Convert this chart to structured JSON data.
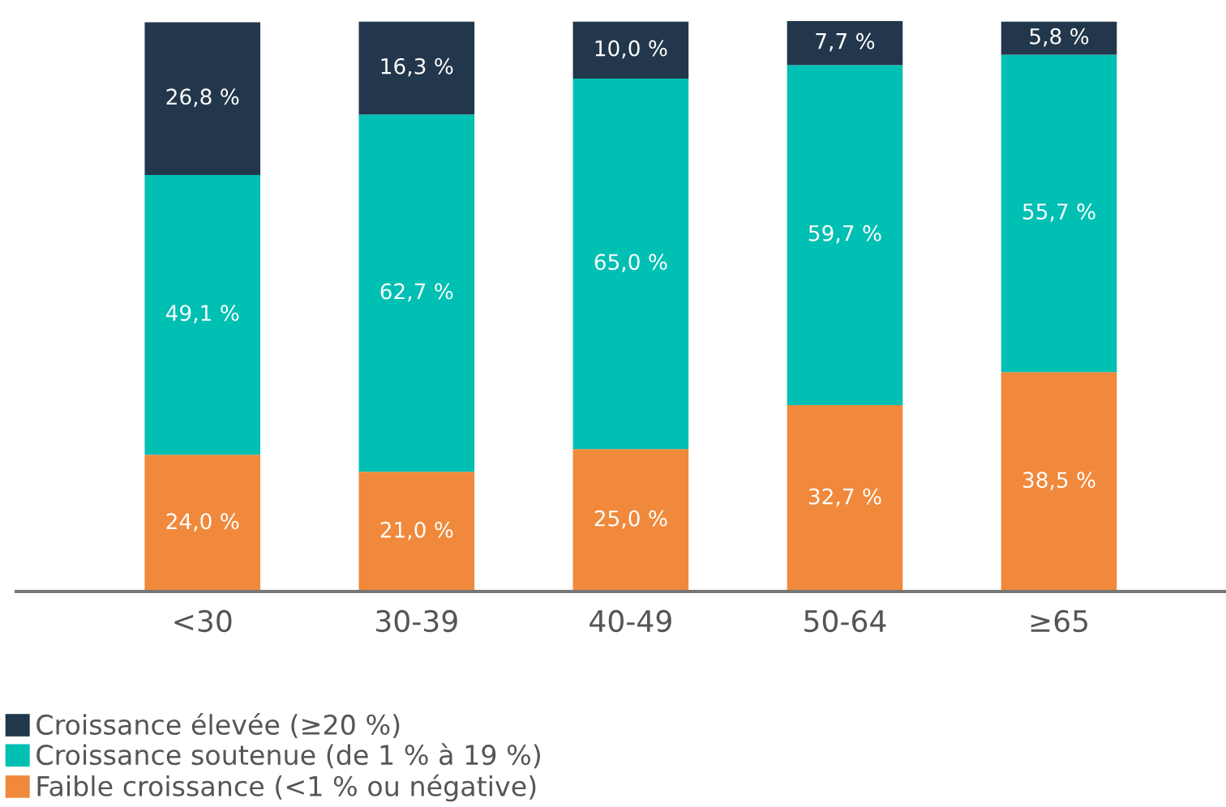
{
  "chart_data": {
    "type": "bar",
    "stacked": true,
    "categories": [
      "<30",
      "30-39",
      "40-49",
      "50-64",
      "≥65"
    ],
    "series": [
      {
        "name": "Faible croissance (<1 % ou négative)",
        "color": "#f0893b",
        "values": [
          24.0,
          21.0,
          25.0,
          32.7,
          38.5
        ],
        "value_labels": [
          "24,0 %",
          "21,0 %",
          "25,0 %",
          "32,7 %",
          "38,5 %"
        ]
      },
      {
        "name": "Croissance soutenue (de 1 % à 19 %)",
        "color": "#00bfb3",
        "values": [
          49.1,
          62.7,
          65.0,
          59.7,
          55.7
        ],
        "value_labels": [
          "49,1 %",
          "62,7 %",
          "65,0 %",
          "59,7 %",
          "55,7 %"
        ]
      },
      {
        "name": "Croissance élevée (≥20 %)",
        "color": "#22374b",
        "values": [
          26.8,
          16.3,
          10.0,
          7.7,
          5.8
        ],
        "value_labels": [
          "26,8 %",
          "16,3 %",
          "10,0 %",
          "7,7 %",
          "5,8 %"
        ]
      }
    ],
    "tick_labels": "x",
    "legend": "bottom left"
  }
}
